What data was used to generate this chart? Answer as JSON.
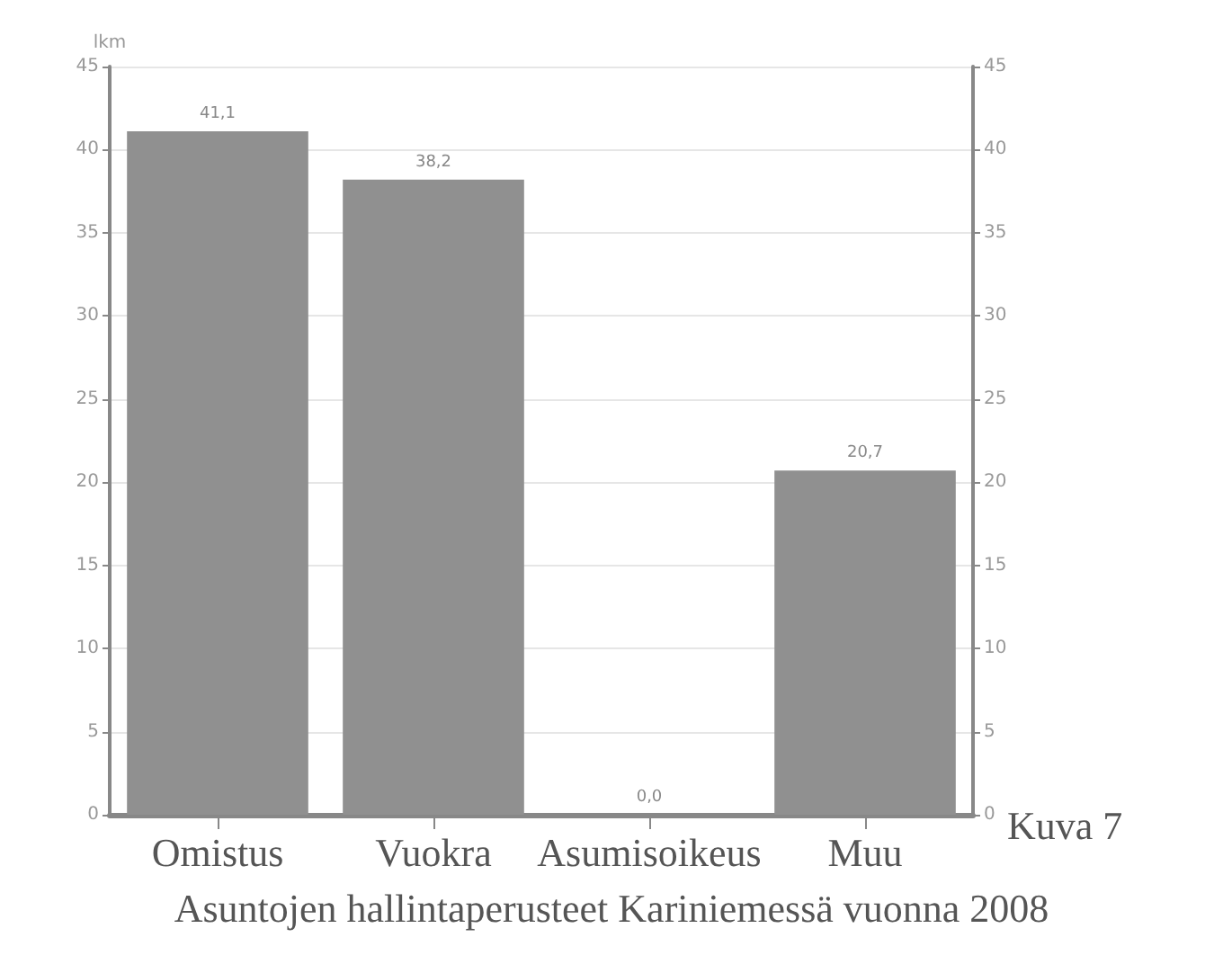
{
  "chart_data": {
    "type": "bar",
    "ylabel": "lkm",
    "categories": [
      "Omistus",
      "Vuokra",
      "Asumisoikeus",
      "Muu"
    ],
    "values": [
      41.1,
      38.2,
      0.0,
      20.7
    ],
    "value_labels": [
      "41,1",
      "38,2",
      "0,0",
      "20,7"
    ],
    "color": "#909090",
    "ylim": [
      0,
      45
    ],
    "yticks": [
      0,
      5,
      10,
      15,
      20,
      25,
      30,
      35,
      40,
      45
    ],
    "y2lim": [
      0,
      45
    ],
    "y2ticks": [
      0,
      5,
      10,
      15,
      20,
      25,
      30,
      35,
      40,
      45
    ],
    "grid": "y",
    "annotations": [
      "Kuva 7",
      "Asuntojen hallintaperusteet Kariniemessä vuonna 2008"
    ]
  }
}
